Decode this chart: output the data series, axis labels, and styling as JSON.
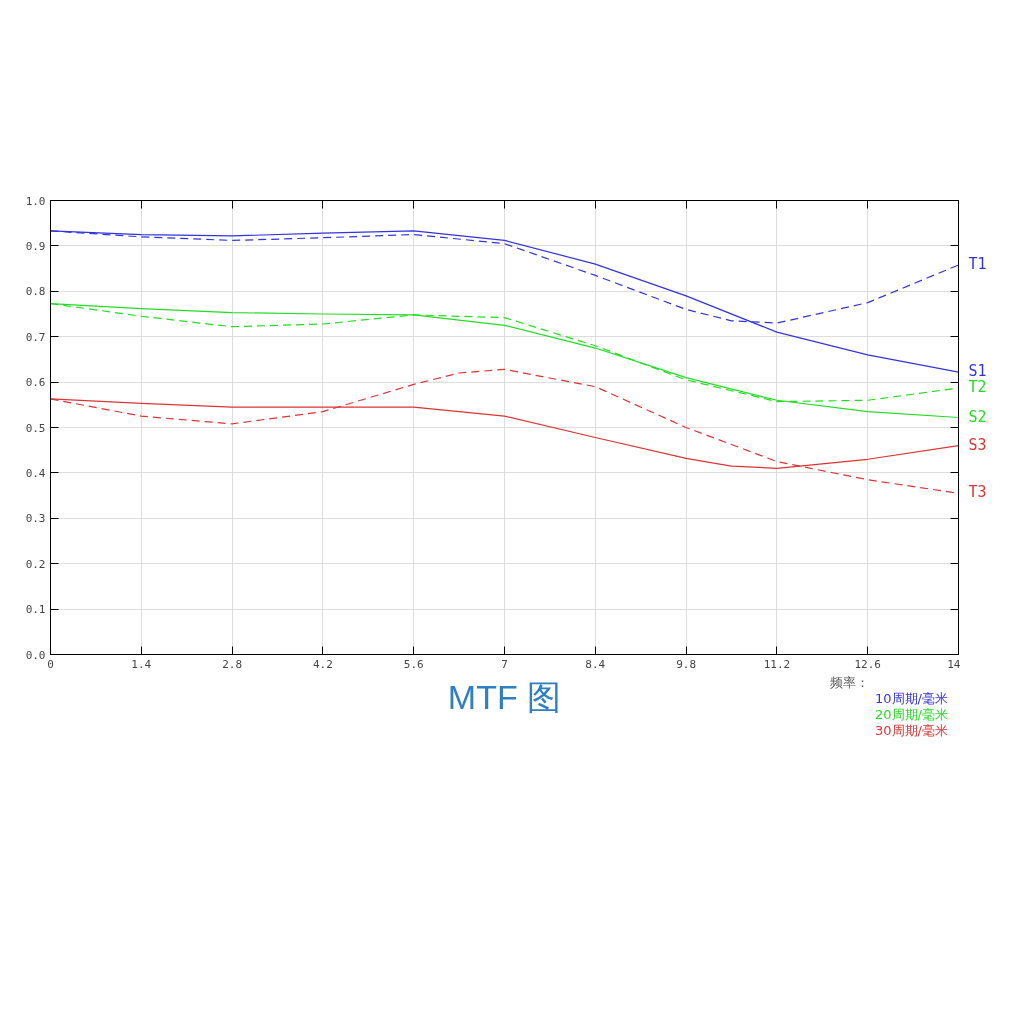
{
  "chart_data": {
    "type": "line",
    "title": "MTF 图",
    "xlim": [
      0,
      14
    ],
    "ylim": [
      0,
      1
    ],
    "xticks": [
      0,
      1.4,
      2.8,
      4.2,
      5.6,
      7,
      8.4,
      9.8,
      11.2,
      12.6,
      14
    ],
    "yticks": [
      {
        "value": 0,
        "label": "0.0"
      },
      0.1,
      0.2,
      0.3,
      0.4,
      0.5,
      0.6,
      0.7,
      0.8,
      0.9,
      {
        "value": 1,
        "label": "1.0"
      }
    ],
    "grid": true,
    "marker": "none",
    "annotations": [
      "频率：",
      "10周期/毫米",
      "20周期/毫米",
      "30周期/毫米"
    ],
    "series": [
      {
        "name": "S1",
        "color": "#3333dd",
        "line_style": "solid",
        "x": [
          0,
          1.4,
          2.8,
          4.2,
          5.6,
          7,
          8.4,
          9.8,
          11.2,
          12.6,
          14
        ],
        "values": [
          0.933,
          0.925,
          0.922,
          0.928,
          0.933,
          0.912,
          0.86,
          0.79,
          0.71,
          0.66,
          0.622
        ]
      },
      {
        "name": "T1",
        "color": "#3333dd",
        "line_style": "dashed",
        "x": [
          0,
          1.4,
          2.8,
          4.2,
          5.6,
          7,
          8.4,
          9.8,
          10.5,
          11.2,
          12.6,
          14
        ],
        "values": [
          0.933,
          0.92,
          0.912,
          0.918,
          0.925,
          0.905,
          0.835,
          0.76,
          0.735,
          0.73,
          0.775,
          0.858
        ]
      },
      {
        "name": "S2",
        "color": "#22dd22",
        "line_style": "solid",
        "x": [
          0,
          1.4,
          2.8,
          4.2,
          5.6,
          7,
          8.4,
          9.8,
          11.2,
          12.6,
          14
        ],
        "values": [
          0.773,
          0.762,
          0.753,
          0.75,
          0.748,
          0.725,
          0.675,
          0.61,
          0.56,
          0.535,
          0.522
        ]
      },
      {
        "name": "T2",
        "color": "#22dd22",
        "line_style": "dashed",
        "x": [
          0,
          1.4,
          2.8,
          4.2,
          5.6,
          7,
          8.4,
          9.8,
          11.2,
          12.6,
          14
        ],
        "values": [
          0.773,
          0.745,
          0.722,
          0.728,
          0.748,
          0.742,
          0.68,
          0.605,
          0.557,
          0.56,
          0.587
        ]
      },
      {
        "name": "S3",
        "color": "#dd3333",
        "line_style": "solid",
        "x": [
          0,
          1.4,
          2.8,
          4.2,
          5.6,
          7,
          8.4,
          9.8,
          10.5,
          11.2,
          12.6,
          14
        ],
        "values": [
          0.563,
          0.553,
          0.545,
          0.545,
          0.545,
          0.525,
          0.478,
          0.432,
          0.415,
          0.41,
          0.43,
          0.46
        ]
      },
      {
        "name": "T3",
        "color": "#dd3333",
        "line_style": "dashed",
        "x": [
          0,
          1.4,
          2.8,
          4.2,
          5.6,
          6.3,
          7,
          8.4,
          9.8,
          11.2,
          12.6,
          14
        ],
        "values": [
          0.563,
          0.525,
          0.508,
          0.535,
          0.595,
          0.62,
          0.628,
          0.59,
          0.5,
          0.425,
          0.385,
          0.355
        ]
      }
    ]
  }
}
